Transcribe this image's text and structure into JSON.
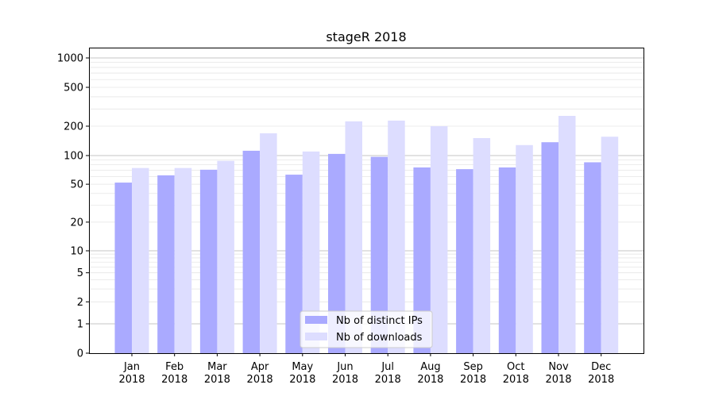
{
  "chart_data": {
    "type": "bar",
    "title": "stageR 2018",
    "xlabel": "",
    "ylabel": "",
    "yscale": "symlog",
    "ylim": [
      0,
      1300
    ],
    "grid": true,
    "legend_position": "lower-center",
    "categories": [
      "Jan\n2018",
      "Feb\n2018",
      "Mar\n2018",
      "Apr\n2018",
      "May\n2018",
      "Jun\n2018",
      "Jul\n2018",
      "Aug\n2018",
      "Sep\n2018",
      "Oct\n2018",
      "Nov\n2018",
      "Dec\n2018"
    ],
    "y_ticks": [
      0,
      1,
      2,
      5,
      10,
      20,
      50,
      100,
      200,
      500,
      1000
    ],
    "series": [
      {
        "name": "Nb of distinct IPs",
        "color": "#aaaaff",
        "values": [
          52,
          62,
          71,
          112,
          63,
          104,
          97,
          75,
          72,
          75,
          137,
          85
        ]
      },
      {
        "name": "Nb of downloads",
        "color": "#ddddff",
        "values": [
          74,
          74,
          88,
          169,
          110,
          224,
          228,
          200,
          151,
          128,
          255,
          156
        ]
      }
    ]
  }
}
